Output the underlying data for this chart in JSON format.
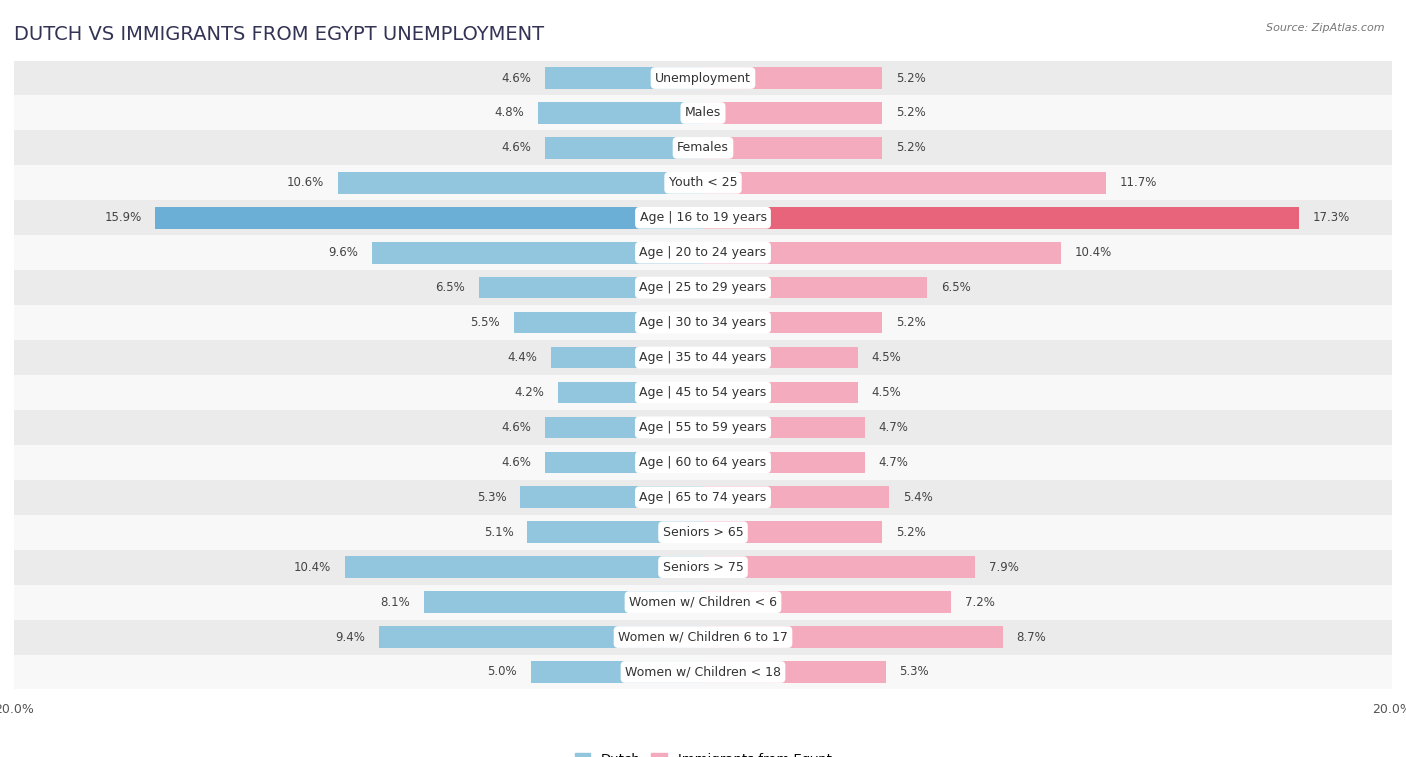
{
  "title": "DUTCH VS IMMIGRANTS FROM EGYPT UNEMPLOYMENT",
  "source": "Source: ZipAtlas.com",
  "categories": [
    "Unemployment",
    "Males",
    "Females",
    "Youth < 25",
    "Age | 16 to 19 years",
    "Age | 20 to 24 years",
    "Age | 25 to 29 years",
    "Age | 30 to 34 years",
    "Age | 35 to 44 years",
    "Age | 45 to 54 years",
    "Age | 55 to 59 years",
    "Age | 60 to 64 years",
    "Age | 65 to 74 years",
    "Seniors > 65",
    "Seniors > 75",
    "Women w/ Children < 6",
    "Women w/ Children 6 to 17",
    "Women w/ Children < 18"
  ],
  "dutch_values": [
    4.6,
    4.8,
    4.6,
    10.6,
    15.9,
    9.6,
    6.5,
    5.5,
    4.4,
    4.2,
    4.6,
    4.6,
    5.3,
    5.1,
    10.4,
    8.1,
    9.4,
    5.0
  ],
  "egypt_values": [
    5.2,
    5.2,
    5.2,
    11.7,
    17.3,
    10.4,
    6.5,
    5.2,
    4.5,
    4.5,
    4.7,
    4.7,
    5.4,
    5.2,
    7.9,
    7.2,
    8.7,
    5.3
  ],
  "dutch_color": "#92C5DE",
  "egypt_color": "#F4ABBE",
  "dutch_highlight_color": "#6BAED6",
  "egypt_highlight_color": "#E8647A",
  "highlight_rows": [
    4
  ],
  "max_value": 20.0,
  "bg_color": "#ffffff",
  "row_bg_even": "#ebebeb",
  "row_bg_odd": "#f8f8f8",
  "title_fontsize": 14,
  "label_fontsize": 9,
  "value_fontsize": 8.5,
  "legend_dutch": "Dutch",
  "legend_egypt": "Immigrants from Egypt"
}
